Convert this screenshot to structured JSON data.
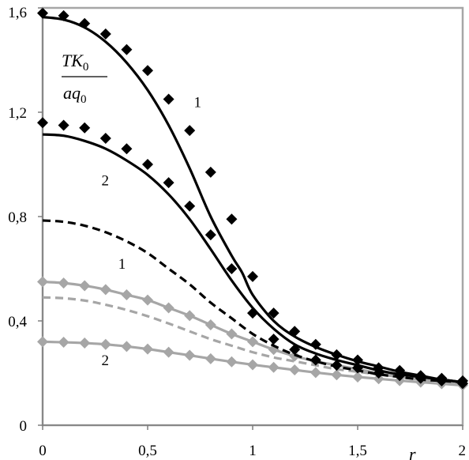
{
  "chart_data": {
    "type": "line",
    "xlabel": "r",
    "ylabel_numerator": "TK0",
    "ylabel_denominator": "aq0",
    "xlim": [
      0,
      2
    ],
    "ylim": [
      0,
      1.6
    ],
    "x_ticks": [
      "0",
      "0,5",
      "1",
      "1,5",
      "2"
    ],
    "y_ticks": [
      "0",
      "0,4",
      "0,8",
      "1,2",
      "1,6"
    ],
    "grid": false,
    "legend": "none",
    "series": [
      {
        "role": "curve",
        "color": "#000000",
        "dash": false,
        "x": [
          0,
          0.1,
          0.2,
          0.3,
          0.4,
          0.5,
          0.6,
          0.7,
          0.8,
          0.9,
          0.95,
          1.0,
          1.1,
          1.2,
          1.3,
          1.4,
          1.5,
          1.6,
          1.7,
          1.8,
          1.9,
          2.0
        ],
        "y": [
          1.565,
          1.555,
          1.525,
          1.47,
          1.39,
          1.285,
          1.15,
          0.985,
          0.8,
          0.65,
          0.585,
          0.5,
          0.4,
          0.34,
          0.3,
          0.27,
          0.245,
          0.225,
          0.205,
          0.19,
          0.175,
          0.165
        ]
      },
      {
        "role": "markers",
        "marker": "diamond",
        "color": "#000000",
        "x": [
          0,
          0.1,
          0.2,
          0.3,
          0.4,
          0.5,
          0.6,
          0.7,
          0.8,
          0.9,
          1.0,
          1.1,
          1.2,
          1.3,
          1.4,
          1.5,
          1.6,
          1.7,
          1.8,
          1.9,
          2.0
        ],
        "y": [
          1.58,
          1.57,
          1.54,
          1.5,
          1.44,
          1.36,
          1.25,
          1.13,
          0.97,
          0.79,
          0.57,
          0.43,
          0.36,
          0.31,
          0.27,
          0.25,
          0.22,
          0.21,
          0.19,
          0.18,
          0.17
        ]
      },
      {
        "role": "curve",
        "color": "#000000",
        "dash": false,
        "x": [
          0,
          0.1,
          0.2,
          0.3,
          0.4,
          0.5,
          0.6,
          0.7,
          0.8,
          0.9,
          1.0,
          1.1,
          1.2,
          1.3,
          1.4,
          1.5,
          1.6,
          1.7,
          1.8,
          1.9,
          2.0
        ],
        "y": [
          1.115,
          1.11,
          1.09,
          1.06,
          1.015,
          0.96,
          0.885,
          0.79,
          0.675,
          0.555,
          0.45,
          0.37,
          0.31,
          0.275,
          0.25,
          0.23,
          0.21,
          0.195,
          0.185,
          0.175,
          0.165
        ]
      },
      {
        "role": "markers",
        "marker": "diamond",
        "color": "#000000",
        "x": [
          0,
          0.1,
          0.2,
          0.3,
          0.4,
          0.5,
          0.6,
          0.7,
          0.8,
          0.9,
          1.0,
          1.1,
          1.2,
          1.3,
          1.4,
          1.5,
          1.6,
          1.7,
          1.8,
          1.9,
          2.0
        ],
        "y": [
          1.16,
          1.15,
          1.14,
          1.1,
          1.06,
          1.0,
          0.93,
          0.84,
          0.73,
          0.6,
          0.43,
          0.33,
          0.29,
          0.25,
          0.23,
          0.22,
          0.2,
          0.19,
          0.18,
          0.17,
          0.16
        ]
      },
      {
        "role": "curve",
        "color": "#000000",
        "dash": true,
        "x": [
          0,
          0.1,
          0.2,
          0.3,
          0.4,
          0.5,
          0.6,
          0.7,
          0.8,
          0.9,
          1.0,
          1.1,
          1.2,
          1.3,
          1.4,
          1.5,
          1.6,
          1.7,
          1.8,
          1.9,
          2.0
        ],
        "y": [
          0.785,
          0.78,
          0.765,
          0.74,
          0.705,
          0.66,
          0.6,
          0.54,
          0.47,
          0.41,
          0.35,
          0.305,
          0.27,
          0.245,
          0.225,
          0.21,
          0.195,
          0.185,
          0.175,
          0.17,
          0.165
        ]
      },
      {
        "role": "curve",
        "color": "#a6a6a6",
        "dash": false,
        "x": [
          0,
          0.1,
          0.2,
          0.3,
          0.4,
          0.5,
          0.6,
          0.7,
          0.8,
          0.9,
          1.0,
          1.1,
          1.2,
          1.3,
          1.4,
          1.5,
          1.6,
          1.7,
          1.8,
          1.9,
          2.0
        ],
        "y": [
          0.55,
          0.545,
          0.535,
          0.52,
          0.5,
          0.48,
          0.45,
          0.42,
          0.385,
          0.35,
          0.32,
          0.29,
          0.265,
          0.245,
          0.23,
          0.215,
          0.2,
          0.19,
          0.18,
          0.17,
          0.16
        ]
      },
      {
        "role": "markers",
        "marker": "diamond",
        "color": "#a6a6a6",
        "x": [
          0,
          0.1,
          0.2,
          0.3,
          0.4,
          0.5,
          0.6,
          0.7,
          0.8,
          0.9,
          1.0,
          1.1,
          1.2,
          1.3,
          1.4,
          1.5,
          1.6,
          1.7,
          1.8,
          1.9,
          2.0
        ],
        "y": [
          0.55,
          0.545,
          0.535,
          0.52,
          0.5,
          0.48,
          0.45,
          0.42,
          0.385,
          0.35,
          0.32,
          0.29,
          0.265,
          0.245,
          0.23,
          0.215,
          0.2,
          0.19,
          0.18,
          0.17,
          0.16
        ]
      },
      {
        "role": "curve",
        "color": "#a6a6a6",
        "dash": true,
        "x": [
          0,
          0.1,
          0.2,
          0.3,
          0.4,
          0.5,
          0.6,
          0.7,
          0.8,
          0.9,
          1.0,
          1.1,
          1.2,
          1.3,
          1.4,
          1.5,
          1.6,
          1.7,
          1.8,
          1.9,
          2.0
        ],
        "y": [
          0.49,
          0.487,
          0.478,
          0.462,
          0.442,
          0.418,
          0.39,
          0.36,
          0.33,
          0.305,
          0.28,
          0.26,
          0.245,
          0.23,
          0.215,
          0.205,
          0.195,
          0.185,
          0.175,
          0.165,
          0.155
        ]
      },
      {
        "role": "curve",
        "color": "#a6a6a6",
        "dash": false,
        "x": [
          0,
          0.1,
          0.2,
          0.3,
          0.4,
          0.5,
          0.6,
          0.7,
          0.8,
          0.9,
          1.0,
          1.1,
          1.2,
          1.3,
          1.4,
          1.5,
          1.6,
          1.7,
          1.8,
          1.9,
          2.0
        ],
        "y": [
          0.32,
          0.318,
          0.315,
          0.31,
          0.302,
          0.292,
          0.28,
          0.268,
          0.255,
          0.243,
          0.232,
          0.222,
          0.212,
          0.202,
          0.193,
          0.185,
          0.178,
          0.171,
          0.165,
          0.159,
          0.153
        ]
      },
      {
        "role": "markers",
        "marker": "diamond",
        "color": "#a6a6a6",
        "x": [
          0,
          0.1,
          0.2,
          0.3,
          0.4,
          0.5,
          0.6,
          0.7,
          0.8,
          0.9,
          1.0,
          1.1,
          1.2,
          1.3,
          1.4,
          1.5,
          1.6,
          1.7,
          1.8,
          1.9,
          2.0
        ],
        "y": [
          0.32,
          0.318,
          0.315,
          0.31,
          0.302,
          0.292,
          0.28,
          0.268,
          0.255,
          0.243,
          0.232,
          0.222,
          0.212,
          0.202,
          0.193,
          0.185,
          0.178,
          0.171,
          0.165,
          0.159,
          0.153
        ]
      }
    ],
    "annotations": [
      {
        "text": "1",
        "x": 0.72,
        "y": 1.22
      },
      {
        "text": "2",
        "x": 0.28,
        "y": 0.92
      },
      {
        "text": "1",
        "x": 0.36,
        "y": 0.6
      },
      {
        "text": "2",
        "x": 0.28,
        "y": 0.23
      }
    ]
  }
}
